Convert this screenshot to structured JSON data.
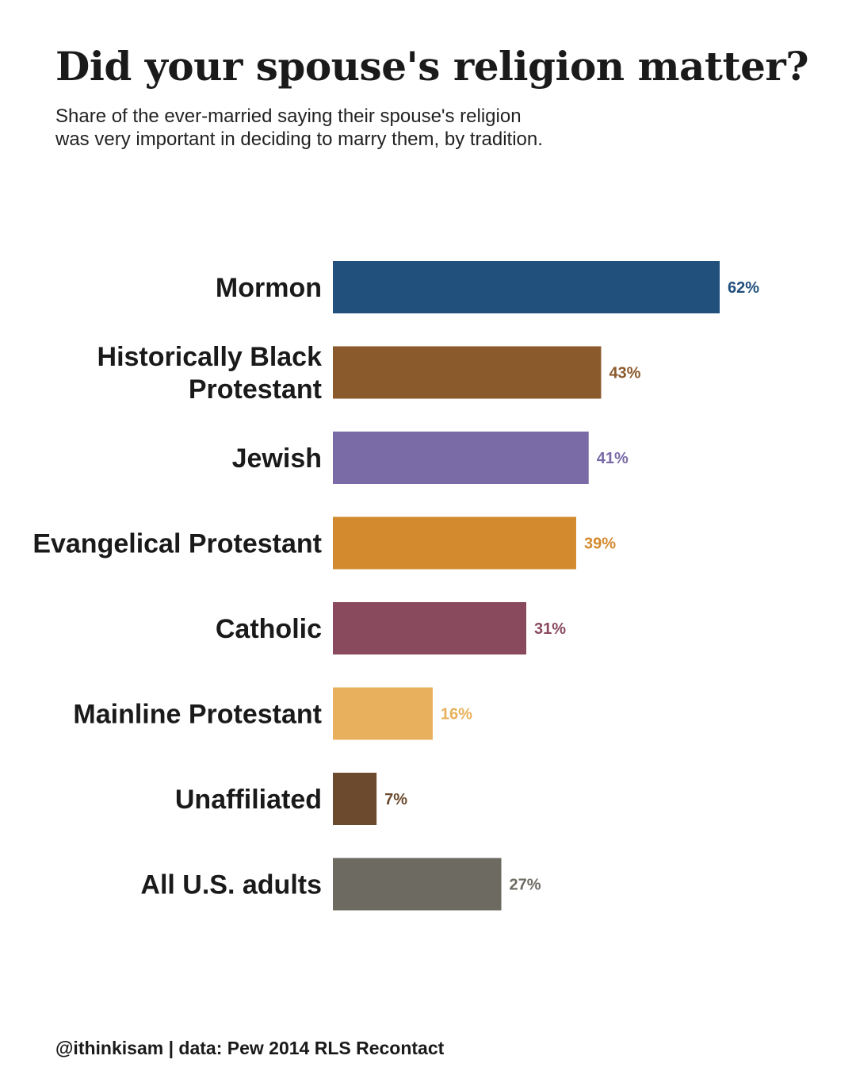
{
  "title": "Did your spouse's religion matter?",
  "subtitle": {
    "line1": "Share of the ever-married saying their spouse's religion",
    "line2": "was very important in deciding to marry them, by tradition."
  },
  "footer": "@ithinkisam | data: Pew 2014 RLS Recontact",
  "chart_data": {
    "type": "bar",
    "orientation": "horizontal",
    "title": "Did your spouse's religion matter?",
    "xlabel": "",
    "ylabel": "",
    "xlim": [
      0,
      62
    ],
    "grid": false,
    "legend": "none",
    "value_suffix": "%",
    "categories": [
      "Mormon",
      "Historically Black Protestant",
      "Jewish",
      "Evangelical Protestant",
      "Catholic",
      "Mainline Protestant",
      "Unaffiliated",
      "All U.S. adults"
    ],
    "category_lines": [
      [
        "Mormon"
      ],
      [
        "Historically Black",
        "Protestant"
      ],
      [
        "Jewish"
      ],
      [
        "Evangelical Protestant"
      ],
      [
        "Catholic"
      ],
      [
        "Mainline Protestant"
      ],
      [
        "Unaffiliated"
      ],
      [
        "All U.S. adults"
      ]
    ],
    "values": [
      62,
      43,
      41,
      39,
      31,
      16,
      7,
      27
    ],
    "value_labels": [
      "62%",
      "43%",
      "41%",
      "39%",
      "31%",
      "16%",
      "7%",
      "27%"
    ],
    "colors": [
      "#21507c",
      "#8b5a2c",
      "#7a6ba6",
      "#d3892e",
      "#8a4a5e",
      "#e8b05c",
      "#6b4a2e",
      "#6d6a62"
    ]
  }
}
